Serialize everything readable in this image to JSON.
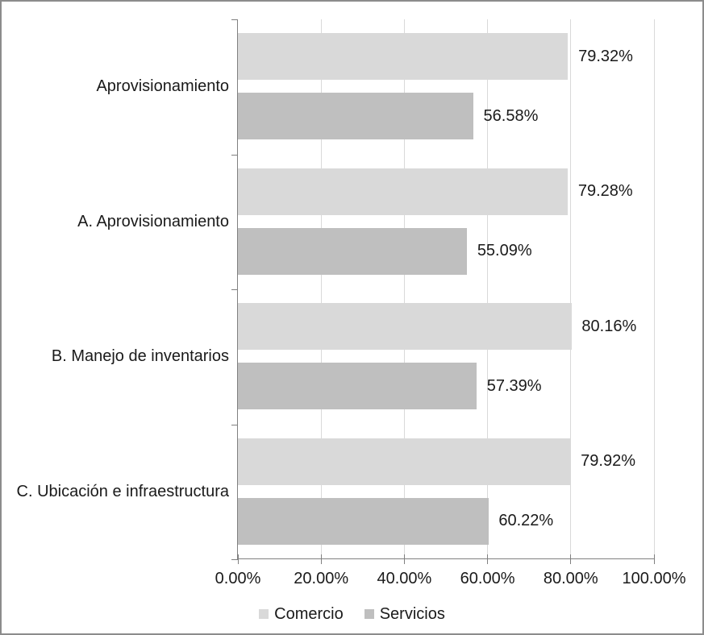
{
  "chart_data": {
    "type": "bar",
    "orientation": "horizontal",
    "title": "",
    "xlabel": "",
    "ylabel": "",
    "grid": true,
    "categories": [
      "Aprovisionamiento",
      "A. Aprovisionamiento",
      "B. Manejo de inventarios",
      "C. Ubicación e infraestructura"
    ],
    "series": [
      {
        "name": "Comercio",
        "color": "#d9d9d9",
        "values": [
          79.32,
          79.28,
          80.16,
          79.92
        ],
        "labels": [
          "79.32%",
          "79.28%",
          "80.16%",
          "79.92%"
        ]
      },
      {
        "name": "Servicios",
        "color": "#bfbfbf",
        "values": [
          56.58,
          55.09,
          57.39,
          60.22
        ],
        "labels": [
          "56.58%",
          "55.09%",
          "57.39%",
          "60.22%"
        ]
      }
    ],
    "x_axis": {
      "min": 0,
      "max": 100,
      "ticks": [
        0,
        20,
        40,
        60,
        80,
        100
      ],
      "tick_labels": [
        "0.00%",
        "20.00%",
        "40.00%",
        "60.00%",
        "80.00%",
        "100.00%"
      ]
    },
    "legend": {
      "position": "bottom",
      "entries": [
        "Comercio",
        "Servicios"
      ]
    },
    "colors": {
      "gridline": "#d9d9d9",
      "axis": "#808080",
      "text": "#1a1a1a",
      "border": "#8c8c8c",
      "background": "#ffffff"
    }
  }
}
